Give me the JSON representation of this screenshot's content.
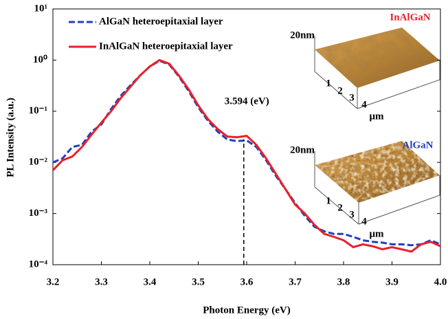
{
  "chart_data": {
    "type": "line",
    "xlabel": "Photon Energy (eV)",
    "ylabel": "PL Intensity (a.u.)",
    "x": [
      3.2,
      3.22,
      3.24,
      3.26,
      3.28,
      3.3,
      3.32,
      3.34,
      3.36,
      3.38,
      3.4,
      3.42,
      3.44,
      3.46,
      3.48,
      3.5,
      3.52,
      3.54,
      3.56,
      3.58,
      3.6,
      3.62,
      3.64,
      3.66,
      3.68,
      3.7,
      3.72,
      3.74,
      3.76,
      3.78,
      3.8,
      3.82,
      3.84,
      3.86,
      3.88,
      3.9,
      3.92,
      3.94,
      3.96,
      3.98,
      4.0
    ],
    "series": [
      {
        "name": "AlGaN heteroepitaxial layer",
        "color": "#1f3fbf",
        "line_style": "dashed",
        "values": [
          0.01,
          0.012,
          0.02,
          0.022,
          0.04,
          0.055,
          0.11,
          0.2,
          0.32,
          0.5,
          0.75,
          0.97,
          0.82,
          0.48,
          0.25,
          0.12,
          0.065,
          0.04,
          0.028,
          0.026,
          0.027,
          0.02,
          0.011,
          0.0055,
          0.003,
          0.0016,
          0.0009,
          0.00055,
          0.00045,
          0.0004,
          0.0004,
          0.00035,
          0.0003,
          0.00028,
          0.00027,
          0.00025,
          0.00025,
          0.00024,
          0.00025,
          0.0003,
          0.00025
        ]
      },
      {
        "name": "InAlGaN heteroepitaxial layer",
        "color": "#e8202a",
        "line_style": "solid",
        "values": [
          0.007,
          0.011,
          0.013,
          0.02,
          0.035,
          0.06,
          0.1,
          0.18,
          0.3,
          0.5,
          0.75,
          1.0,
          0.85,
          0.5,
          0.27,
          0.13,
          0.07,
          0.045,
          0.032,
          0.031,
          0.033,
          0.022,
          0.012,
          0.006,
          0.003,
          0.0015,
          0.001,
          0.0006,
          0.0004,
          0.00035,
          0.0003,
          0.00022,
          0.00025,
          0.00023,
          0.0002,
          0.00022,
          0.0002,
          0.00018,
          0.00025,
          0.00028,
          0.00023
        ]
      }
    ],
    "xlim": [
      3.2,
      4.0
    ],
    "xticks": [
      3.2,
      3.3,
      3.4,
      3.5,
      3.6,
      3.7,
      3.8,
      3.9,
      {
        "value": 4,
        "label": "4.0"
      }
    ],
    "ylim": [
      0.0001,
      10
    ],
    "yscale": "log",
    "yticks": [
      {
        "value": 10,
        "label": "10¹"
      },
      {
        "value": 1,
        "label": "10⁰"
      },
      {
        "value": 0.1,
        "label": "10⁻¹"
      },
      {
        "value": 0.01,
        "label": "10⁻²"
      },
      {
        "value": 0.001,
        "label": "10⁻³"
      },
      {
        "value": 0.0001,
        "label": "10⁻⁴"
      }
    ],
    "legend": "upper left",
    "marker": {
      "text": "3.594 (eV)",
      "x": 3.594,
      "y": 0.028
    },
    "insets": [
      {
        "title": "InAlGaN",
        "title_color": "#e8202a",
        "z_label": "20nm",
        "axis_ticks": [
          "1",
          "2",
          "3",
          "4"
        ],
        "unit": "μm"
      },
      {
        "title": "AlGaN",
        "title_color": "#1f3fbf",
        "z_label": "20nm",
        "axis_ticks": [
          "1",
          "2",
          "3",
          "4"
        ],
        "unit": "μm"
      }
    ]
  }
}
